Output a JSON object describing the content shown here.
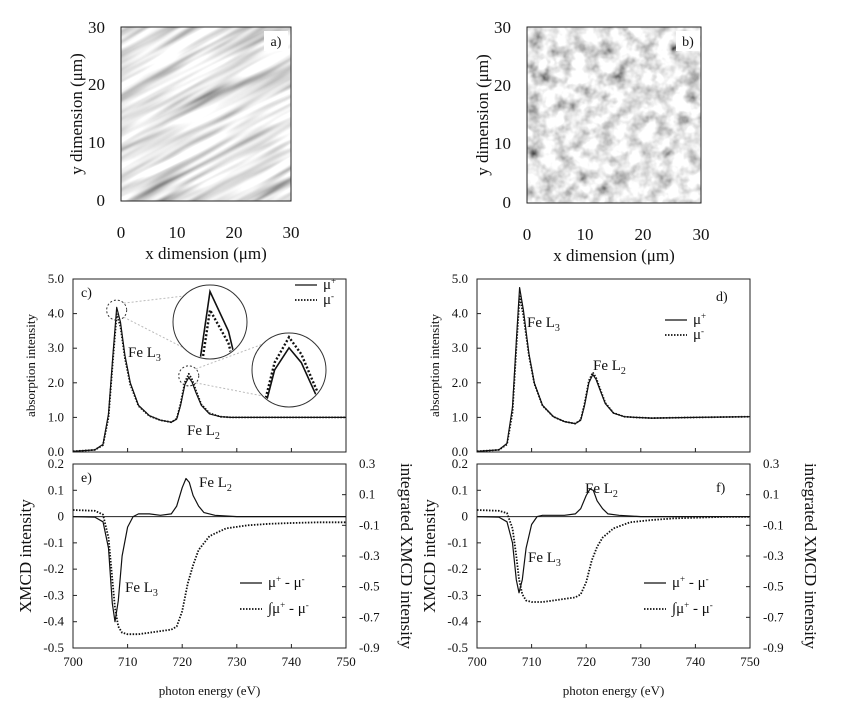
{
  "figure": {
    "panels_top": [
      {
        "id": "a",
        "panel_label": "a)",
        "xlabel": "x dimension (μm)",
        "ylabel": "y dimension (μm)",
        "xticks": [
          "0",
          "10",
          "20",
          "30"
        ],
        "yticks": [
          "0",
          "10",
          "20",
          "30"
        ],
        "image_pattern": "regular-stripe-domains"
      },
      {
        "id": "b",
        "panel_label": "b)",
        "xlabel": "x dimension (μm)",
        "ylabel": "y dimension (μm)",
        "xticks": [
          "0",
          "10",
          "20",
          "30"
        ],
        "yticks": [
          "0",
          "10",
          "20",
          "30"
        ],
        "image_pattern": "disordered-maze-domains"
      }
    ]
  },
  "chart_data": [
    {
      "id": "c",
      "type": "line",
      "panel_label": "c)",
      "ylabel": "absorption intensity",
      "xlim": [
        700,
        750
      ],
      "ylim": [
        0,
        5
      ],
      "yticks": [
        "0.0",
        "1.0",
        "2.0",
        "3.0",
        "4.0",
        "5.0"
      ],
      "legend": [
        "μ+",
        "μ-"
      ],
      "legend_position": "top-right",
      "annotations": [
        "Fe L3",
        "Fe L2"
      ],
      "insets": "zoomed circles of the L3 and L2 peaks",
      "series": [
        {
          "name": "μ+",
          "style": "solid",
          "x": [
            700,
            704,
            705.5,
            706.5,
            707.3,
            708,
            708.7,
            709.5,
            710.5,
            712,
            714,
            716,
            718,
            719,
            719.7,
            720.5,
            721.2,
            721.8,
            722.5,
            723.5,
            725,
            727,
            729,
            732,
            740,
            750
          ],
          "y": [
            0.02,
            0.06,
            0.22,
            1.1,
            2.8,
            4.18,
            3.75,
            2.8,
            2.0,
            1.35,
            1.05,
            0.92,
            0.86,
            0.95,
            1.35,
            1.95,
            2.16,
            2.02,
            1.72,
            1.35,
            1.1,
            1.02,
            1.0,
            1.0,
            1.0,
            1.0
          ]
        },
        {
          "name": "μ-",
          "style": "dotted",
          "x": [
            700,
            704,
            705.5,
            706.5,
            707.3,
            708,
            708.7,
            709.5,
            710.5,
            712,
            714,
            716,
            718,
            719,
            719.7,
            720.5,
            721.2,
            721.8,
            722.5,
            723.5,
            725,
            727,
            729,
            732,
            740,
            750
          ],
          "y": [
            0.02,
            0.06,
            0.2,
            1.0,
            2.65,
            3.98,
            3.62,
            2.72,
            1.95,
            1.33,
            1.04,
            0.92,
            0.86,
            0.96,
            1.4,
            2.02,
            2.26,
            2.1,
            1.78,
            1.38,
            1.12,
            1.02,
            1.0,
            1.0,
            1.0,
            1.0
          ]
        }
      ]
    },
    {
      "id": "d",
      "type": "line",
      "panel_label": "d)",
      "ylabel": "absorption intensity",
      "xlim": [
        700,
        750
      ],
      "ylim": [
        0,
        5
      ],
      "yticks": [
        "0.0",
        "1.0",
        "2.0",
        "3.0",
        "4.0",
        "5.0"
      ],
      "legend": [
        "μ+",
        "μ-"
      ],
      "legend_position": "top-right",
      "annotations": [
        "Fe L3",
        "Fe L2"
      ],
      "series": [
        {
          "name": "μ+",
          "style": "solid",
          "x": [
            700,
            704,
            705.5,
            706.5,
            707.2,
            707.8,
            708.5,
            709.5,
            710.5,
            712,
            714,
            716,
            718,
            719,
            719.7,
            720.5,
            721.2,
            721.8,
            722.5,
            723.5,
            725,
            727,
            729,
            732,
            740,
            750
          ],
          "y": [
            0.02,
            0.06,
            0.25,
            1.3,
            3.2,
            4.75,
            4.1,
            2.85,
            2.0,
            1.35,
            1.02,
            0.88,
            0.82,
            0.92,
            1.35,
            2.0,
            2.24,
            2.1,
            1.8,
            1.4,
            1.12,
            1.02,
            1.0,
            0.98,
            1.0,
            1.02
          ]
        },
        {
          "name": "μ-",
          "style": "dotted",
          "x": [
            700,
            704,
            705.5,
            706.5,
            707.2,
            707.8,
            708.5,
            709.5,
            710.5,
            712,
            714,
            716,
            718,
            719,
            719.7,
            720.5,
            721.2,
            721.8,
            722.5,
            723.5,
            725,
            727,
            729,
            732,
            740,
            750
          ],
          "y": [
            0.02,
            0.06,
            0.22,
            1.15,
            3.0,
            4.5,
            3.95,
            2.8,
            1.98,
            1.34,
            1.02,
            0.88,
            0.82,
            0.93,
            1.4,
            2.06,
            2.3,
            2.15,
            1.84,
            1.42,
            1.13,
            1.02,
            1.0,
            0.98,
            1.0,
            1.02
          ]
        }
      ]
    },
    {
      "id": "e",
      "type": "line",
      "panel_label": "e)",
      "ylabel": "XMCD intensity",
      "ylabel_right": "integrated XMCD intensity",
      "xlabel": "photon energy (eV)",
      "xlim": [
        700,
        750
      ],
      "xticks": [
        "700",
        "710",
        "720",
        "730",
        "740",
        "750"
      ],
      "ylim": [
        -0.5,
        0.2
      ],
      "yticks": [
        "-0.5",
        "-0.4",
        "-0.3",
        "-0.2",
        "-0.1",
        "0",
        "0.1",
        "0.2"
      ],
      "ylim_right": [
        -0.9,
        0.3
      ],
      "yticks_right": [
        "-0.9",
        "-0.7",
        "-0.5",
        "-0.3",
        "-0.1",
        "0.1",
        "0.3"
      ],
      "legend": [
        "μ+ - μ-",
        "∫μ+ - μ-"
      ],
      "legend_position": "bottom-right",
      "annotations": [
        "Fe L3",
        "Fe L2"
      ],
      "series": [
        {
          "name": "μ+ - μ-",
          "style": "solid",
          "axis": "left",
          "x": [
            700,
            704,
            705.5,
            706.5,
            707.2,
            707.7,
            708.3,
            709,
            710,
            711,
            712,
            714,
            716,
            718,
            719,
            720,
            720.7,
            721.3,
            722,
            723,
            724,
            726,
            730,
            740,
            750
          ],
          "y": [
            0,
            -0.002,
            -0.02,
            -0.12,
            -0.33,
            -0.4,
            -0.32,
            -0.15,
            -0.04,
            0.0,
            0.01,
            0.01,
            0.005,
            0.01,
            0.04,
            0.11,
            0.145,
            0.13,
            0.08,
            0.04,
            0.015,
            0.005,
            0,
            0,
            0
          ]
        },
        {
          "name": "∫μ+ - μ-",
          "style": "dotted",
          "axis": "right",
          "x": [
            700,
            704,
            705.5,
            706.5,
            707.2,
            707.7,
            708.3,
            709,
            710,
            711,
            712,
            714,
            716,
            718,
            719,
            720,
            721,
            722,
            723,
            725,
            728,
            732,
            736,
            740,
            745,
            750
          ],
          "y": [
            0,
            -0.005,
            -0.03,
            -0.18,
            -0.45,
            -0.64,
            -0.76,
            -0.8,
            -0.81,
            -0.81,
            -0.81,
            -0.8,
            -0.79,
            -0.78,
            -0.76,
            -0.66,
            -0.48,
            -0.36,
            -0.26,
            -0.17,
            -0.12,
            -0.1,
            -0.09,
            -0.085,
            -0.08,
            -0.08
          ]
        }
      ]
    },
    {
      "id": "f",
      "type": "line",
      "panel_label": "f)",
      "ylabel": "XMCD intensity",
      "ylabel_right": "integrated XMCD intensity",
      "xlabel": "photon energy (eV)",
      "xlim": [
        700,
        750
      ],
      "xticks": [
        "700",
        "710",
        "720",
        "730",
        "740",
        "750"
      ],
      "ylim": [
        -0.5,
        0.2
      ],
      "yticks": [
        "-0.5",
        "-0.4",
        "-0.3",
        "-0.2",
        "-0.1",
        "0",
        "0.1",
        "0.2"
      ],
      "ylim_right": [
        -0.9,
        0.3
      ],
      "yticks_right": [
        "-0.9",
        "-0.7",
        "-0.5",
        "-0.3",
        "-0.1",
        "0.1",
        "0.3"
      ],
      "legend": [
        "μ+ - μ-",
        "∫μ+ - μ-"
      ],
      "legend_position": "bottom-right",
      "annotations": [
        "Fe L3",
        "Fe L2"
      ],
      "series": [
        {
          "name": "μ+ - μ-",
          "style": "solid",
          "axis": "left",
          "x": [
            700,
            704,
            705.5,
            706.5,
            707.2,
            707.7,
            708.3,
            709,
            710,
            711,
            712,
            714,
            716,
            718,
            719,
            720,
            720.7,
            721.3,
            722,
            723,
            724,
            726,
            730,
            740,
            750
          ],
          "y": [
            0,
            -0.002,
            -0.02,
            -0.1,
            -0.24,
            -0.29,
            -0.24,
            -0.12,
            -0.03,
            0.0,
            0.005,
            0.005,
            0.005,
            0.01,
            0.03,
            0.08,
            0.105,
            0.1,
            0.06,
            0.03,
            0.01,
            0.005,
            0,
            0,
            0
          ]
        },
        {
          "name": "∫μ+ - μ-",
          "style": "dotted",
          "axis": "right",
          "x": [
            700,
            704,
            705.5,
            706.5,
            707.2,
            707.7,
            708.3,
            709,
            710,
            711,
            712,
            714,
            716,
            718,
            719,
            720,
            721,
            722,
            723,
            725,
            728,
            732,
            736,
            740,
            745,
            750
          ],
          "y": [
            0,
            -0.005,
            -0.02,
            -0.12,
            -0.3,
            -0.45,
            -0.55,
            -0.59,
            -0.6,
            -0.6,
            -0.6,
            -0.59,
            -0.58,
            -0.57,
            -0.55,
            -0.47,
            -0.33,
            -0.24,
            -0.18,
            -0.12,
            -0.08,
            -0.065,
            -0.055,
            -0.05,
            -0.045,
            -0.045
          ]
        }
      ]
    }
  ]
}
